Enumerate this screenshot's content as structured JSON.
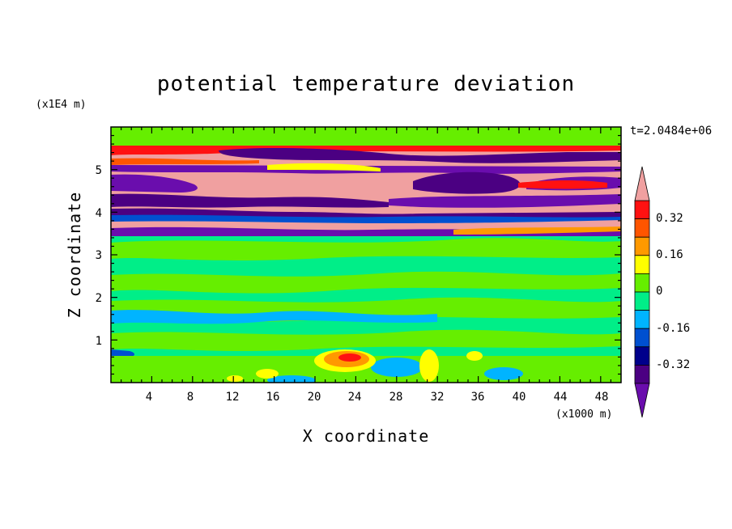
{
  "chart_data": {
    "type": "heatmap",
    "title": "potential temperature deviation",
    "xlabel": "X coordinate",
    "ylabel": "Z coordinate",
    "x_unit": "(x1000 m)",
    "y_unit": "(x1E4 m)",
    "time_label": "t=2.0484e+06",
    "xlim": [
      0,
      50
    ],
    "ylim": [
      0,
      6
    ],
    "x_ticks": [
      "4",
      "8",
      "12",
      "16",
      "20",
      "24",
      "28",
      "32",
      "36",
      "40",
      "44",
      "48"
    ],
    "y_ticks": [
      "1",
      "2",
      "3",
      "4",
      "5"
    ],
    "colorbar": {
      "levels": [
        -0.48,
        -0.4,
        -0.32,
        -0.24,
        -0.16,
        -0.08,
        0,
        0.08,
        0.16,
        0.24,
        0.32,
        0.4
      ],
      "labels": [
        "0.32",
        "0.16",
        "0",
        "-0.16",
        "-0.32"
      ],
      "colors": [
        "#6a0dad",
        "#4b0082",
        "#00008b",
        "#0050d0",
        "#00b4ff",
        "#00ee88",
        "#66ee00",
        "#ffff00",
        "#ff9900",
        "#ff5500",
        "#ff1111",
        "#f0a0a0"
      ]
    }
  }
}
